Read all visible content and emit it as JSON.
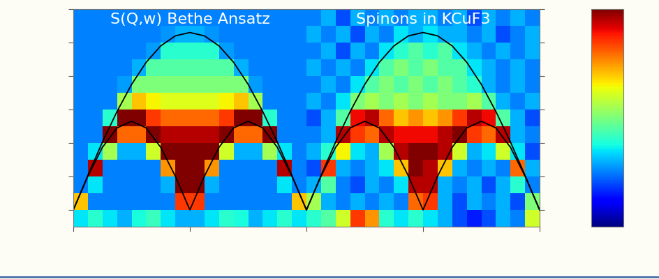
{
  "chart_data": {
    "type": "heatmap",
    "annotations": [
      {
        "text": "S(Q,w) Bethe Ansatz"
      },
      {
        "text": "Spinons in KCuF3"
      }
    ],
    "xlim": [
      0,
      4
    ],
    "xticks": [
      0,
      1,
      2,
      3,
      4
    ],
    "ylim": [
      -5,
      60
    ],
    "yticks": [
      0,
      10,
      20,
      30,
      40,
      50,
      60
    ],
    "tick_labels": false,
    "color": "jet",
    "colorbar": {
      "range": [
        0,
        1
      ],
      "ticks": []
    },
    "x_edges": [
      0,
      0.125,
      0.25,
      0.375,
      0.5,
      0.625,
      0.75,
      0.875,
      1,
      1.125,
      1.25,
      1.375,
      1.5,
      1.625,
      1.75,
      1.875,
      2,
      2.125,
      2.25,
      2.375,
      2.5,
      2.625,
      2.75,
      2.875,
      3,
      3.125,
      3.25,
      3.375,
      3.5,
      3.625,
      3.75,
      3.875,
      4
    ],
    "y_edges": [
      -5,
      0,
      5,
      10,
      15,
      20,
      25,
      30,
      35,
      40,
      45,
      50,
      55,
      60
    ],
    "cells": [
      [
        0.35,
        0.4,
        0.35,
        0.3,
        0.38,
        0.42,
        0.35,
        0.3,
        0.3,
        0.35,
        0.4,
        0.38,
        0.3,
        0.35,
        0.4,
        0.35,
        0.4,
        0.45,
        0.6,
        0.85,
        0.75,
        0.4,
        0.35,
        0.4,
        0.35,
        0.3,
        0.2,
        0.15,
        0.2,
        0.3,
        0.25,
        0.6
      ],
      [
        0.7,
        0.25,
        0.25,
        0.25,
        0.25,
        0.25,
        0.25,
        0.85,
        0.85,
        0.25,
        0.25,
        0.25,
        0.25,
        0.25,
        0.25,
        0.7,
        0.55,
        0.3,
        0.25,
        0.3,
        0.25,
        0.3,
        0.25,
        0.8,
        0.85,
        0.3,
        0.2,
        0.3,
        0.25,
        0.3,
        0.2,
        0.5
      ],
      [
        0.25,
        0.35,
        0.25,
        0.25,
        0.25,
        0.25,
        0.3,
        1.0,
        1.0,
        0.3,
        0.25,
        0.25,
        0.25,
        0.25,
        0.35,
        0.25,
        0.3,
        0.45,
        0.25,
        0.2,
        0.3,
        0.25,
        0.35,
        0.95,
        0.95,
        0.3,
        0.25,
        0.3,
        0.2,
        0.3,
        0.4,
        0.25
      ],
      [
        0.25,
        0.95,
        0.25,
        0.25,
        0.25,
        0.25,
        0.75,
        1.0,
        1.0,
        0.75,
        0.25,
        0.25,
        0.25,
        0.25,
        0.95,
        0.25,
        0.2,
        0.85,
        0.3,
        0.25,
        0.3,
        0.35,
        0.7,
        1.0,
        0.95,
        0.7,
        0.3,
        0.25,
        0.3,
        0.25,
        0.8,
        0.3
      ],
      [
        0.25,
        0.35,
        0.55,
        0.3,
        0.3,
        0.6,
        1.0,
        1.0,
        1.0,
        1.0,
        0.6,
        0.3,
        0.3,
        0.55,
        0.35,
        0.25,
        0.3,
        0.4,
        0.65,
        0.35,
        0.3,
        0.55,
        0.95,
        1.0,
        1.0,
        0.95,
        0.6,
        0.3,
        0.35,
        0.6,
        0.35,
        0.2
      ],
      [
        0.25,
        0.25,
        1.0,
        0.8,
        0.8,
        1.0,
        0.95,
        0.95,
        0.95,
        0.95,
        1.0,
        0.8,
        0.8,
        1.0,
        0.25,
        0.25,
        0.25,
        0.3,
        0.95,
        0.85,
        0.8,
        0.95,
        0.9,
        0.9,
        0.9,
        0.95,
        1.0,
        0.85,
        0.8,
        0.95,
        0.3,
        0.25
      ],
      [
        0.25,
        0.25,
        0.4,
        1.0,
        1.0,
        0.85,
        0.8,
        0.8,
        0.8,
        0.8,
        0.85,
        1.0,
        1.0,
        0.4,
        0.25,
        0.25,
        0.2,
        0.3,
        0.45,
        0.9,
        0.95,
        0.8,
        0.7,
        0.75,
        0.7,
        0.75,
        0.85,
        0.95,
        0.9,
        0.45,
        0.3,
        0.2
      ],
      [
        0.25,
        0.25,
        0.25,
        0.55,
        0.7,
        0.65,
        0.62,
        0.62,
        0.62,
        0.62,
        0.65,
        0.7,
        0.55,
        0.25,
        0.25,
        0.25,
        0.3,
        0.25,
        0.35,
        0.5,
        0.55,
        0.5,
        0.55,
        0.5,
        0.55,
        0.5,
        0.5,
        0.55,
        0.45,
        0.3,
        0.25,
        0.3
      ],
      [
        0.25,
        0.25,
        0.25,
        0.28,
        0.5,
        0.5,
        0.5,
        0.5,
        0.5,
        0.5,
        0.5,
        0.5,
        0.28,
        0.25,
        0.25,
        0.25,
        0.25,
        0.3,
        0.25,
        0.35,
        0.45,
        0.5,
        0.45,
        0.5,
        0.45,
        0.5,
        0.45,
        0.4,
        0.3,
        0.25,
        0.3,
        0.25
      ],
      [
        0.25,
        0.25,
        0.25,
        0.25,
        0.3,
        0.45,
        0.45,
        0.45,
        0.45,
        0.45,
        0.45,
        0.3,
        0.25,
        0.25,
        0.25,
        0.25,
        0.3,
        0.25,
        0.3,
        0.25,
        0.35,
        0.45,
        0.5,
        0.45,
        0.5,
        0.45,
        0.45,
        0.35,
        0.3,
        0.25,
        0.3,
        0.25
      ],
      [
        0.25,
        0.25,
        0.25,
        0.25,
        0.25,
        0.28,
        0.4,
        0.4,
        0.4,
        0.4,
        0.28,
        0.25,
        0.25,
        0.25,
        0.25,
        0.25,
        0.25,
        0.3,
        0.2,
        0.3,
        0.25,
        0.35,
        0.4,
        0.45,
        0.4,
        0.45,
        0.35,
        0.3,
        0.25,
        0.3,
        0.25,
        0.3
      ],
      [
        0.25,
        0.25,
        0.25,
        0.25,
        0.25,
        0.25,
        0.27,
        0.3,
        0.3,
        0.27,
        0.25,
        0.25,
        0.25,
        0.25,
        0.25,
        0.25,
        0.3,
        0.25,
        0.3,
        0.2,
        0.3,
        0.25,
        0.35,
        0.3,
        0.35,
        0.3,
        0.3,
        0.25,
        0.3,
        0.2,
        0.25,
        0.3
      ],
      [
        0.25,
        0.25,
        0.25,
        0.25,
        0.25,
        0.25,
        0.25,
        0.25,
        0.25,
        0.25,
        0.25,
        0.25,
        0.25,
        0.25,
        0.25,
        0.25,
        0.25,
        0.3,
        0.2,
        0.3,
        0.25,
        0.3,
        0.25,
        0.3,
        0.3,
        0.25,
        0.3,
        0.2,
        0.3,
        0.25,
        0.3,
        0.25
      ]
    ],
    "lines": [
      {
        "color": "#000000",
        "x": [
          0,
          0.125,
          0.25,
          0.375,
          0.5,
          0.625,
          0.75,
          0.875,
          1,
          1.125,
          1.25,
          1.375,
          1.5,
          1.625,
          1.75,
          1.875,
          2,
          2.125,
          2.25,
          2.375,
          2.5,
          2.625,
          2.75,
          2.875,
          3,
          3.125,
          3.25,
          3.375,
          3.5,
          3.625,
          3.75,
          3.875,
          4
        ],
        "values": [
          0,
          10.1,
          18.7,
          24.5,
          26.5,
          24.5,
          18.7,
          10.1,
          0,
          10.1,
          18.7,
          24.5,
          26.5,
          24.5,
          18.7,
          10.1,
          0,
          10.1,
          18.7,
          24.5,
          26.5,
          24.5,
          18.7,
          10.1,
          0,
          10.1,
          18.7,
          24.5,
          26.5,
          24.5,
          18.7,
          10.1,
          0
        ]
      },
      {
        "color": "#000000",
        "x": [
          0,
          0.125,
          0.25,
          0.375,
          0.5,
          0.625,
          0.75,
          0.875,
          1,
          1.125,
          1.25,
          1.375,
          1.5,
          1.625,
          1.75,
          1.875,
          2
        ],
        "values": [
          0,
          10.3,
          20.3,
          29.4,
          37.5,
          44.1,
          49.0,
          52.0,
          53,
          52.0,
          49.0,
          44.1,
          37.5,
          29.4,
          20.3,
          10.3,
          0
        ]
      },
      {
        "color": "#000000",
        "x": [
          2,
          2.125,
          2.25,
          2.375,
          2.5,
          2.625,
          2.75,
          2.875,
          3,
          3.125,
          3.25,
          3.375,
          3.5,
          3.625,
          3.75,
          3.875,
          4
        ],
        "values": [
          0,
          10.3,
          20.3,
          29.4,
          37.5,
          44.1,
          49.0,
          52.0,
          53,
          52.0,
          49.0,
          44.1,
          37.5,
          29.4,
          20.3,
          10.3,
          0
        ]
      }
    ]
  }
}
